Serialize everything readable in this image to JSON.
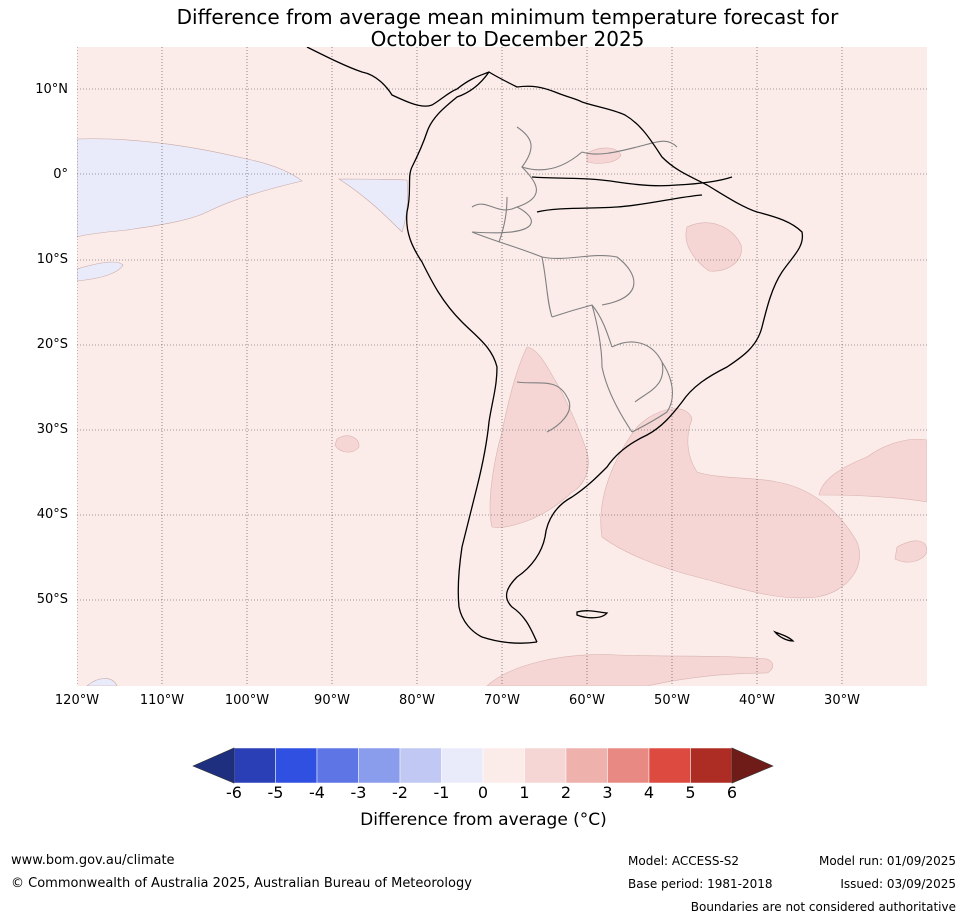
{
  "title_line1": "Difference from average mean minimum temperature forecast for",
  "title_line2": "October to December 2025",
  "map": {
    "lat_labels": [
      "10°N",
      "0°",
      "10°S",
      "20°S",
      "30°S",
      "40°S",
      "50°S"
    ],
    "lon_labels": [
      "120°W",
      "110°W",
      "100°W",
      "90°W",
      "80°W",
      "70°W",
      "60°W",
      "50°W",
      "40°W",
      "30°W"
    ],
    "region": "South America",
    "colors": {
      "ocean_land_base": "#fbecea",
      "cool_anomaly": "#e9ebfa",
      "warm_anomaly": "#f5d6d4",
      "coastline": "#000000",
      "borders": "#808080",
      "gridlines": "#444444"
    }
  },
  "colorbar": {
    "ticks": [
      "-6",
      "-5",
      "-4",
      "-3",
      "-2",
      "-1",
      "0",
      "1",
      "2",
      "3",
      "4",
      "5",
      "6"
    ],
    "colors": [
      "#1f2f80",
      "#2a3fb5",
      "#3050e2",
      "#5e75e6",
      "#8a9cec",
      "#c1c8f3",
      "#e9ebfa",
      "#fbecea",
      "#f5d6d4",
      "#eeb1ab",
      "#e88a83",
      "#dc4a40",
      "#ad2c23",
      "#6f1c18"
    ],
    "label": "Difference from average (°C)"
  },
  "footer": {
    "website": "www.bom.gov.au/climate",
    "copyright": "© Commonwealth of Australia 2025, Australian Bureau of Meteorology",
    "model": "Model: ACCESS-S2",
    "base_period": "Base period: 1981-2018",
    "model_run": "Model run: 01/09/2025",
    "issued": "Issued: 03/09/2025",
    "disclaimer": "Boundaries are not considered authoritative"
  }
}
